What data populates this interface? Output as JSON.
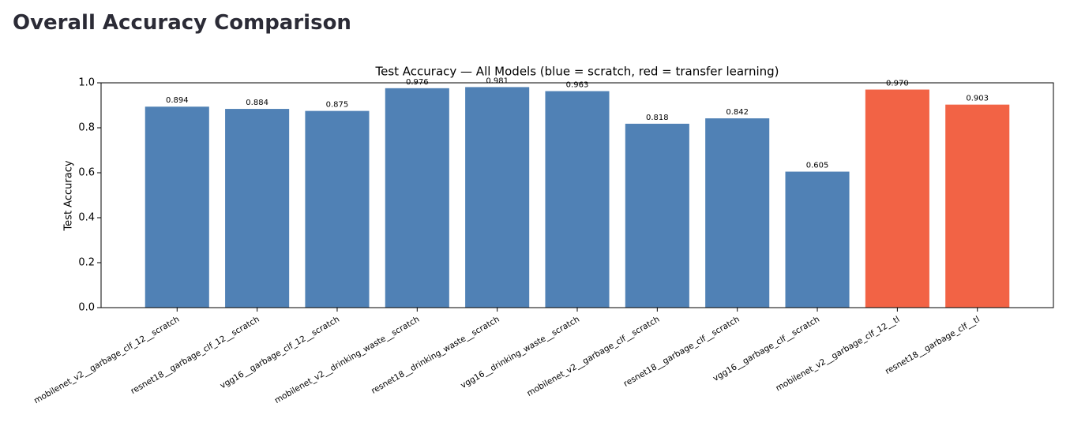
{
  "header": {
    "title": "Overall Accuracy Comparison"
  },
  "chart_data": {
    "type": "bar",
    "title": "Test Accuracy — All Models  (blue = scratch, red = transfer learning)",
    "y_label": "Test Accuracy",
    "categories": [
      "mobilenet_v2__garbage_clf_12__scratch",
      "resnet18__garbage_clf_12__scratch",
      "vgg16__garbage_clf_12__scratch",
      "mobilenet_v2__drinking_waste__scratch",
      "resnet18__drinking_waste__scratch",
      "vgg16__drinking_waste__scratch",
      "mobilenet_v2__garbage_clf__scratch",
      "resnet18__garbage_clf__scratch",
      "vgg16__garbage_clf__scratch",
      "mobilenet_v2__garbage_clf_12__tl",
      "resnet18__garbage_clf__tl"
    ],
    "values": [
      0.894,
      0.884,
      0.875,
      0.976,
      0.981,
      0.963,
      0.818,
      0.842,
      0.605,
      0.97,
      0.903
    ],
    "value_labels": [
      "0.894",
      "0.884",
      "0.875",
      "0.976",
      "0.981",
      "0.963",
      "0.818",
      "0.842",
      "0.605",
      "0.970",
      "0.903"
    ],
    "colors": [
      "#5081b5",
      "#5081b5",
      "#5081b5",
      "#5081b5",
      "#5081b5",
      "#5081b5",
      "#5081b5",
      "#5081b5",
      "#5081b5",
      "#f26345",
      "#f26345"
    ],
    "ylim": [
      0,
      1
    ],
    "yticks": [
      {
        "value": 0,
        "label": "0.0"
      },
      0.2,
      0.4,
      0.6,
      0.8,
      {
        "value": 1,
        "label": "1.0"
      }
    ],
    "grid": false
  }
}
